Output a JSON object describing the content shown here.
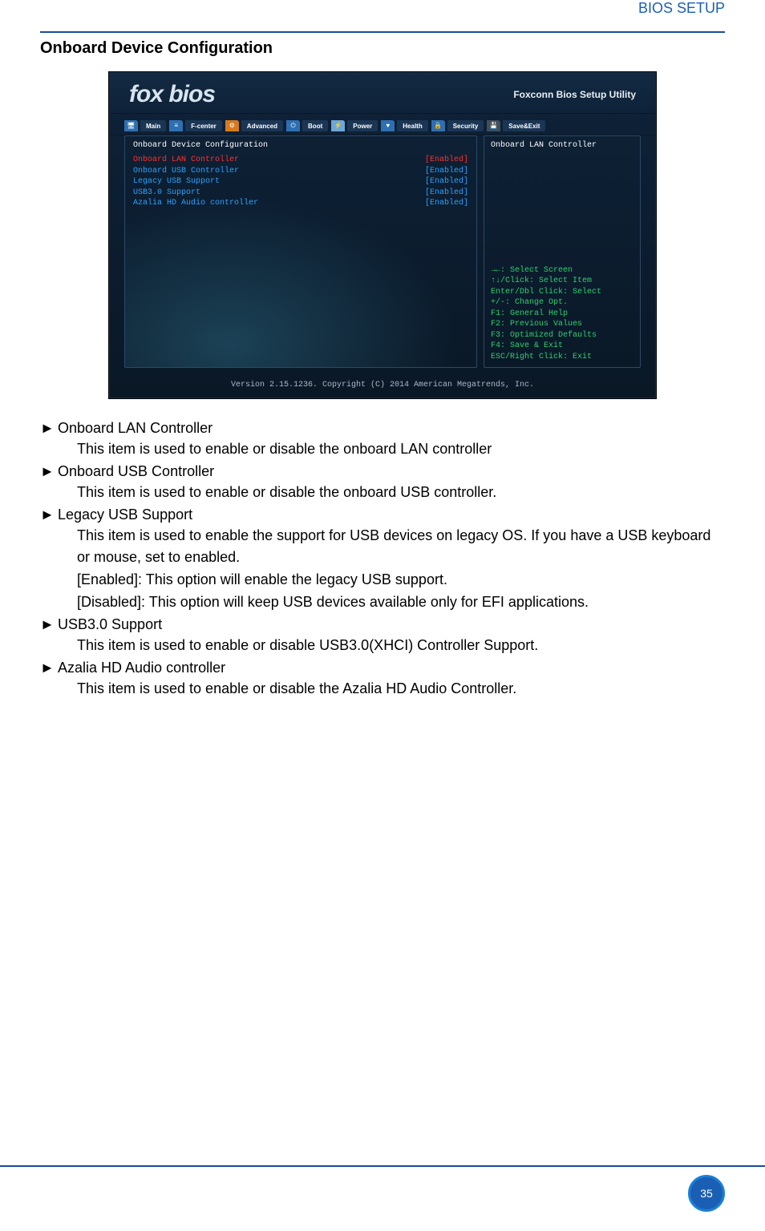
{
  "header": {
    "right_title": "BIOS SETUP",
    "section_title": "Onboard Device Configuration"
  },
  "bios": {
    "logo": "fox bios",
    "brand": "Foxconn Bios Setup Utility",
    "tabs": [
      {
        "label": "Main",
        "icon_bg": "#2e6fb1",
        "glyph": "🖥"
      },
      {
        "label": "F-center",
        "icon_bg": "#2e6fb1",
        "glyph": "≡"
      },
      {
        "label": "Advanced",
        "icon_bg": "#d67a1f",
        "glyph": "⚙"
      },
      {
        "label": "Boot",
        "icon_bg": "#2e6fb1",
        "glyph": "⏻"
      },
      {
        "label": "Power",
        "icon_bg": "#6ea6d8",
        "glyph": "⚡"
      },
      {
        "label": "Health",
        "icon_bg": "#2e6fb1",
        "glyph": "♥"
      },
      {
        "label": "Security",
        "icon_bg": "#2e6fb1",
        "glyph": "🔒"
      },
      {
        "label": "Save&Exit",
        "icon_bg": "#3d4e5f",
        "glyph": "💾"
      }
    ],
    "left_panel": {
      "title": "Onboard Device Configuration",
      "rows": [
        {
          "name": "Onboard LAN Controller",
          "value": "[Enabled]",
          "selected": true
        },
        {
          "name": "Onboard USB Controller",
          "value": "[Enabled]",
          "selected": false
        },
        {
          "name": "Legacy USB Support",
          "value": "[Enabled]",
          "selected": false
        },
        {
          "name": "USB3.0 Support",
          "value": "[Enabled]",
          "selected": false
        },
        {
          "name": "Azalia HD Audio controller",
          "value": "[Enabled]",
          "selected": false
        }
      ]
    },
    "right_panel": {
      "help_title": "Onboard LAN Controller",
      "keys": [
        "→←: Select Screen",
        "↑↓/Click: Select Item",
        "Enter/Dbl Click: Select",
        "+/-: Change Opt.",
        "F1: General Help",
        "F2: Previous Values",
        "F3: Optimized Defaults",
        "F4: Save & Exit",
        "ESC/Right Click: Exit"
      ]
    },
    "footer": "Version 2.15.1236. Copyright (C) 2014 American Megatrends, Inc."
  },
  "items": [
    {
      "title": "Onboard LAN Controller",
      "desc": [
        "This item is used to enable or disable the onboard LAN controller"
      ]
    },
    {
      "title": "Onboard USB Controller",
      "desc": [
        "This item is used to enable or disable the onboard USB controller."
      ]
    },
    {
      "title": "Legacy USB Support",
      "desc": [
        "This item is used to enable the support for USB devices on legacy OS. If you have a USB keyboard or mouse, set to enabled.",
        "[Enabled]: This option will enable the legacy USB support.",
        "[Disabled]: This option will keep USB devices available only for EFI applications."
      ]
    },
    {
      "title": "USB3.0 Support",
      "desc": [
        "This item is used to enable or disable USB3.0(XHCI) Controller Support."
      ]
    },
    {
      "title": "Azalia HD Audio controller",
      "desc": [
        "This item is used to enable or disable the Azalia HD Audio Controller."
      ]
    }
  ],
  "page_number": "35"
}
